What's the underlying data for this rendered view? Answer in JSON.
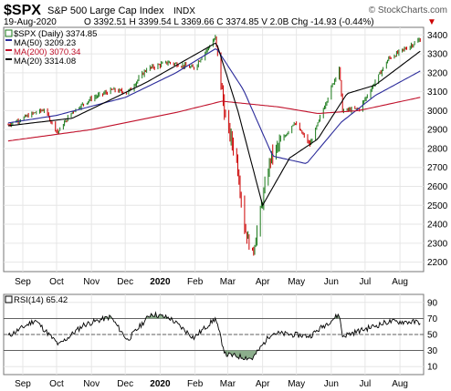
{
  "header": {
    "symbol": "$SPX",
    "name": "S&P 500 Large Cap Index",
    "exchange": "INDX",
    "watermark": "© StockCharts.com",
    "date": "19-Aug-2020",
    "quote": "O 3392.51  H 3399.54  L 3369.66  C 3374.85  V 2.0B  Chg -14.93 (-0.44%)",
    "chg_marker": "▼"
  },
  "legend": {
    "price": "$SPX (Daily) 3374.85",
    "ma50": "MA(50) 3209.23",
    "ma200": "MA(200) 3070.34",
    "ma20": "MA(20) 3314.08"
  },
  "rsi_label": "RSI(14) 65.42",
  "colors": {
    "up": "#1a7a1a",
    "down": "#cc0000",
    "ma50": "#2a2a9a",
    "ma200": "#c0102a",
    "ma20": "#000000",
    "rsi": "#000000",
    "rsi_fill": "#8cae8c"
  },
  "chart_data": [
    {
      "type": "line",
      "title": "$SPX S&P 500 Large Cap Index",
      "x_ticks": [
        "Sep",
        "Oct",
        "Nov",
        "Dec",
        "2020",
        "Feb",
        "Mar",
        "Apr",
        "May",
        "Jun",
        "Jul",
        "Aug"
      ],
      "y_ticks": [
        2200,
        2300,
        2400,
        2500,
        2600,
        2700,
        2800,
        2900,
        3000,
        3100,
        3200,
        3300,
        3400
      ],
      "ylim": [
        2150,
        3440
      ],
      "grid": true,
      "legend_position": "top-left",
      "series": [
        {
          "name": "$SPX (Daily)",
          "points": [
            [
              "2019-08-19",
              2925
            ],
            [
              "2019-09-10",
              2985
            ],
            [
              "2019-09-20",
              3005
            ],
            [
              "2019-10-02",
              2885
            ],
            [
              "2019-10-15",
              2995
            ],
            [
              "2019-11-01",
              3065
            ],
            [
              "2019-11-20",
              3110
            ],
            [
              "2019-12-03",
              3095
            ],
            [
              "2019-12-20",
              3220
            ],
            [
              "2020-01-08",
              3255
            ],
            [
              "2020-01-31",
              3225
            ],
            [
              "2020-02-19",
              3385
            ],
            [
              "2020-02-28",
              2955
            ],
            [
              "2020-03-09",
              2745
            ],
            [
              "2020-03-16",
              2385
            ],
            [
              "2020-03-23",
              2237
            ],
            [
              "2020-04-08",
              2750
            ],
            [
              "2020-04-29",
              2940
            ],
            [
              "2020-05-13",
              2820
            ],
            [
              "2020-06-08",
              3230
            ],
            [
              "2020-06-11",
              3000
            ],
            [
              "2020-06-26",
              3010
            ],
            [
              "2020-07-22",
              3275
            ],
            [
              "2020-08-19",
              3374.85
            ]
          ]
        },
        {
          "name": "MA(50)",
          "points": [
            [
              "2019-08-19",
              2935
            ],
            [
              "2019-10-01",
              2975
            ],
            [
              "2019-12-01",
              3070
            ],
            [
              "2020-01-15",
              3200
            ],
            [
              "2020-02-20",
              3330
            ],
            [
              "2020-03-15",
              3110
            ],
            [
              "2020-04-10",
              2760
            ],
            [
              "2020-05-10",
              2720
            ],
            [
              "2020-06-10",
              2940
            ],
            [
              "2020-07-10",
              3080
            ],
            [
              "2020-08-19",
              3209.23
            ]
          ]
        },
        {
          "name": "MA(200)",
          "points": [
            [
              "2019-08-19",
              2840
            ],
            [
              "2019-11-01",
              2900
            ],
            [
              "2020-01-15",
              2990
            ],
            [
              "2020-02-25",
              3050
            ],
            [
              "2020-04-15",
              3020
            ],
            [
              "2020-05-20",
              2985
            ],
            [
              "2020-06-25",
              3000
            ],
            [
              "2020-08-19",
              3070.34
            ]
          ]
        },
        {
          "name": "MA(20)",
          "points": [
            [
              "2019-08-19",
              2920
            ],
            [
              "2019-10-15",
              2960
            ],
            [
              "2019-12-20",
              3150
            ],
            [
              "2020-02-20",
              3360
            ],
            [
              "2020-03-10",
              3000
            ],
            [
              "2020-04-01",
              2500
            ],
            [
              "2020-04-25",
              2750
            ],
            [
              "2020-05-20",
              2850
            ],
            [
              "2020-06-15",
              3090
            ],
            [
              "2020-07-10",
              3135
            ],
            [
              "2020-08-19",
              3314.08
            ]
          ]
        }
      ]
    },
    {
      "type": "line",
      "title": "RSI(14)",
      "x_ticks": [
        "Sep",
        "Oct",
        "Nov",
        "Dec",
        "2020",
        "Feb",
        "Mar",
        "Apr",
        "May",
        "Jun",
        "Jul",
        "Aug"
      ],
      "y_ticks": [
        10,
        30,
        50,
        70,
        90
      ],
      "ylim": [
        0,
        100
      ],
      "grid": true,
      "series": [
        {
          "name": "RSI(14)",
          "points": [
            [
              "2019-08-19",
              48
            ],
            [
              "2019-09-12",
              68
            ],
            [
              "2019-10-03",
              37
            ],
            [
              "2019-10-25",
              62
            ],
            [
              "2019-11-18",
              72
            ],
            [
              "2019-12-03",
              43
            ],
            [
              "2019-12-24",
              76
            ],
            [
              "2020-01-10",
              70
            ],
            [
              "2020-01-31",
              46
            ],
            [
              "2020-02-19",
              70
            ],
            [
              "2020-02-28",
              25
            ],
            [
              "2020-03-23",
              20
            ],
            [
              "2020-04-09",
              52
            ],
            [
              "2020-05-13",
              48
            ],
            [
              "2020-06-08",
              75
            ],
            [
              "2020-06-11",
              48
            ],
            [
              "2020-07-22",
              66
            ],
            [
              "2020-08-19",
              65.42
            ]
          ]
        }
      ]
    }
  ]
}
